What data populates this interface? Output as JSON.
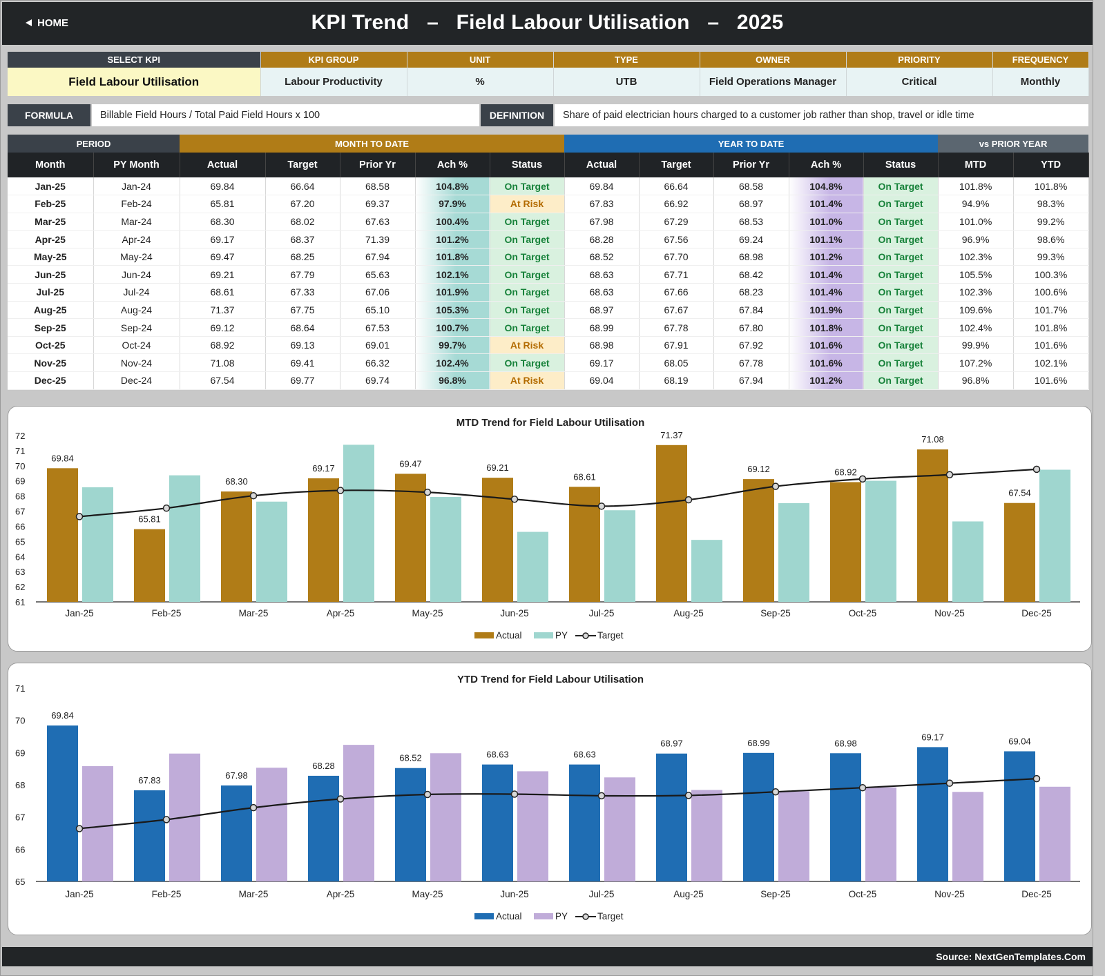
{
  "header": {
    "home_label": "HOME",
    "title_kpi": "KPI Trend",
    "title_dash": "–",
    "title_name": "Field Labour Utilisation",
    "title_year": "2025"
  },
  "info": {
    "headers": [
      "SELECT KPI",
      "KPI GROUP",
      "UNIT",
      "TYPE",
      "OWNER",
      "PRIORITY",
      "FREQUENCY"
    ],
    "values": [
      "Field Labour Utilisation",
      "Labour Productivity",
      "%",
      "UTB",
      "Field Operations Manager",
      "Critical",
      "Monthly"
    ]
  },
  "formula": {
    "label": "FORMULA",
    "value": "Billable Field Hours / Total Paid Field Hours x 100"
  },
  "definition": {
    "label": "DEFINITION",
    "value": "Share of paid electrician hours charged to a customer job rather than shop, travel or idle time"
  },
  "table": {
    "groups": [
      "PERIOD",
      "MONTH TO DATE",
      "YEAR TO DATE",
      "vs PRIOR YEAR"
    ],
    "columns": [
      "Month",
      "PY Month",
      "Actual",
      "Target",
      "Prior Yr",
      "Ach %",
      "Status",
      "Actual",
      "Target",
      "Prior Yr",
      "Ach %",
      "Status",
      "MTD",
      "YTD"
    ],
    "rows": [
      [
        "Jan-25",
        "Jan-24",
        "69.84",
        "66.64",
        "68.58",
        "104.8%",
        "On Target",
        "69.84",
        "66.64",
        "68.58",
        "104.8%",
        "On Target",
        "101.8%",
        "101.8%"
      ],
      [
        "Feb-25",
        "Feb-24",
        "65.81",
        "67.20",
        "69.37",
        "97.9%",
        "At Risk",
        "67.83",
        "66.92",
        "68.97",
        "101.4%",
        "On Target",
        "94.9%",
        "98.3%"
      ],
      [
        "Mar-25",
        "Mar-24",
        "68.30",
        "68.02",
        "67.63",
        "100.4%",
        "On Target",
        "67.98",
        "67.29",
        "68.53",
        "101.0%",
        "On Target",
        "101.0%",
        "99.2%"
      ],
      [
        "Apr-25",
        "Apr-24",
        "69.17",
        "68.37",
        "71.39",
        "101.2%",
        "On Target",
        "68.28",
        "67.56",
        "69.24",
        "101.1%",
        "On Target",
        "96.9%",
        "98.6%"
      ],
      [
        "May-25",
        "May-24",
        "69.47",
        "68.25",
        "67.94",
        "101.8%",
        "On Target",
        "68.52",
        "67.70",
        "68.98",
        "101.2%",
        "On Target",
        "102.3%",
        "99.3%"
      ],
      [
        "Jun-25",
        "Jun-24",
        "69.21",
        "67.79",
        "65.63",
        "102.1%",
        "On Target",
        "68.63",
        "67.71",
        "68.42",
        "101.4%",
        "On Target",
        "105.5%",
        "100.3%"
      ],
      [
        "Jul-25",
        "Jul-24",
        "68.61",
        "67.33",
        "67.06",
        "101.9%",
        "On Target",
        "68.63",
        "67.66",
        "68.23",
        "101.4%",
        "On Target",
        "102.3%",
        "100.6%"
      ],
      [
        "Aug-25",
        "Aug-24",
        "71.37",
        "67.75",
        "65.10",
        "105.3%",
        "On Target",
        "68.97",
        "67.67",
        "67.84",
        "101.9%",
        "On Target",
        "109.6%",
        "101.7%"
      ],
      [
        "Sep-25",
        "Sep-24",
        "69.12",
        "68.64",
        "67.53",
        "100.7%",
        "On Target",
        "68.99",
        "67.78",
        "67.80",
        "101.8%",
        "On Target",
        "102.4%",
        "101.8%"
      ],
      [
        "Oct-25",
        "Oct-24",
        "68.92",
        "69.13",
        "69.01",
        "99.7%",
        "At Risk",
        "68.98",
        "67.91",
        "67.92",
        "101.6%",
        "On Target",
        "99.9%",
        "101.6%"
      ],
      [
        "Nov-25",
        "Nov-24",
        "71.08",
        "69.41",
        "66.32",
        "102.4%",
        "On Target",
        "69.17",
        "68.05",
        "67.78",
        "101.6%",
        "On Target",
        "107.2%",
        "102.1%"
      ],
      [
        "Dec-25",
        "Dec-24",
        "67.54",
        "69.77",
        "69.74",
        "96.8%",
        "At Risk",
        "69.04",
        "68.19",
        "67.94",
        "101.2%",
        "On Target",
        "96.8%",
        "101.6%"
      ]
    ]
  },
  "colors": {
    "mtd_actual": "#b07c17",
    "mtd_py": "#9fd6cf",
    "ytd_actual": "#1f6db3",
    "ytd_py": "#c0acd9",
    "target_line": "#1a1a1a",
    "header_dark": "#222527",
    "ytd_header": "#1f6db3",
    "vspy_header": "#5b6670"
  },
  "chart_data": [
    {
      "type": "bar",
      "title": "MTD Trend for Field Labour Utilisation",
      "categories": [
        "Jan-25",
        "Feb-25",
        "Mar-25",
        "Apr-25",
        "May-25",
        "Jun-25",
        "Jul-25",
        "Aug-25",
        "Sep-25",
        "Oct-25",
        "Nov-25",
        "Dec-25"
      ],
      "series": [
        {
          "name": "Actual",
          "kind": "bar",
          "values": [
            69.84,
            65.81,
            68.3,
            69.17,
            69.47,
            69.21,
            68.61,
            71.37,
            69.12,
            68.92,
            71.08,
            67.54
          ]
        },
        {
          "name": "PY",
          "kind": "bar",
          "values": [
            68.58,
            69.37,
            67.63,
            71.39,
            67.94,
            65.63,
            67.06,
            65.1,
            67.53,
            69.01,
            66.32,
            69.74
          ]
        },
        {
          "name": "Target",
          "kind": "line",
          "values": [
            66.64,
            67.2,
            68.02,
            68.37,
            68.25,
            67.79,
            67.33,
            67.75,
            68.64,
            69.13,
            69.41,
            69.77
          ]
        }
      ],
      "yticks": [
        "72",
        "71",
        "70",
        "69",
        "68",
        "67",
        "66",
        "65",
        "64",
        "63",
        "62",
        "61"
      ],
      "ylim": [
        61,
        72
      ],
      "legend": "bottom"
    },
    {
      "type": "bar",
      "title": "YTD Trend for Field Labour Utilisation",
      "categories": [
        "Jan-25",
        "Feb-25",
        "Mar-25",
        "Apr-25",
        "May-25",
        "Jun-25",
        "Jul-25",
        "Aug-25",
        "Sep-25",
        "Oct-25",
        "Nov-25",
        "Dec-25"
      ],
      "series": [
        {
          "name": "Actual",
          "kind": "bar",
          "values": [
            69.84,
            67.83,
            67.98,
            68.28,
            68.52,
            68.63,
            68.63,
            68.97,
            68.99,
            68.98,
            69.17,
            69.04
          ]
        },
        {
          "name": "PY",
          "kind": "bar",
          "values": [
            68.58,
            68.97,
            68.53,
            69.24,
            68.98,
            68.42,
            68.23,
            67.84,
            67.8,
            67.92,
            67.78,
            67.94
          ]
        },
        {
          "name": "Target",
          "kind": "line",
          "values": [
            66.64,
            66.92,
            67.29,
            67.56,
            67.7,
            67.71,
            67.66,
            67.67,
            67.78,
            67.91,
            68.05,
            68.19
          ]
        }
      ],
      "yticks": [
        "71",
        "70",
        "69",
        "68",
        "67",
        "66",
        "65"
      ],
      "ylim": [
        65,
        71
      ],
      "legend": "bottom"
    }
  ],
  "footer": {
    "source": "Source: NextGenTemplates.Com"
  }
}
